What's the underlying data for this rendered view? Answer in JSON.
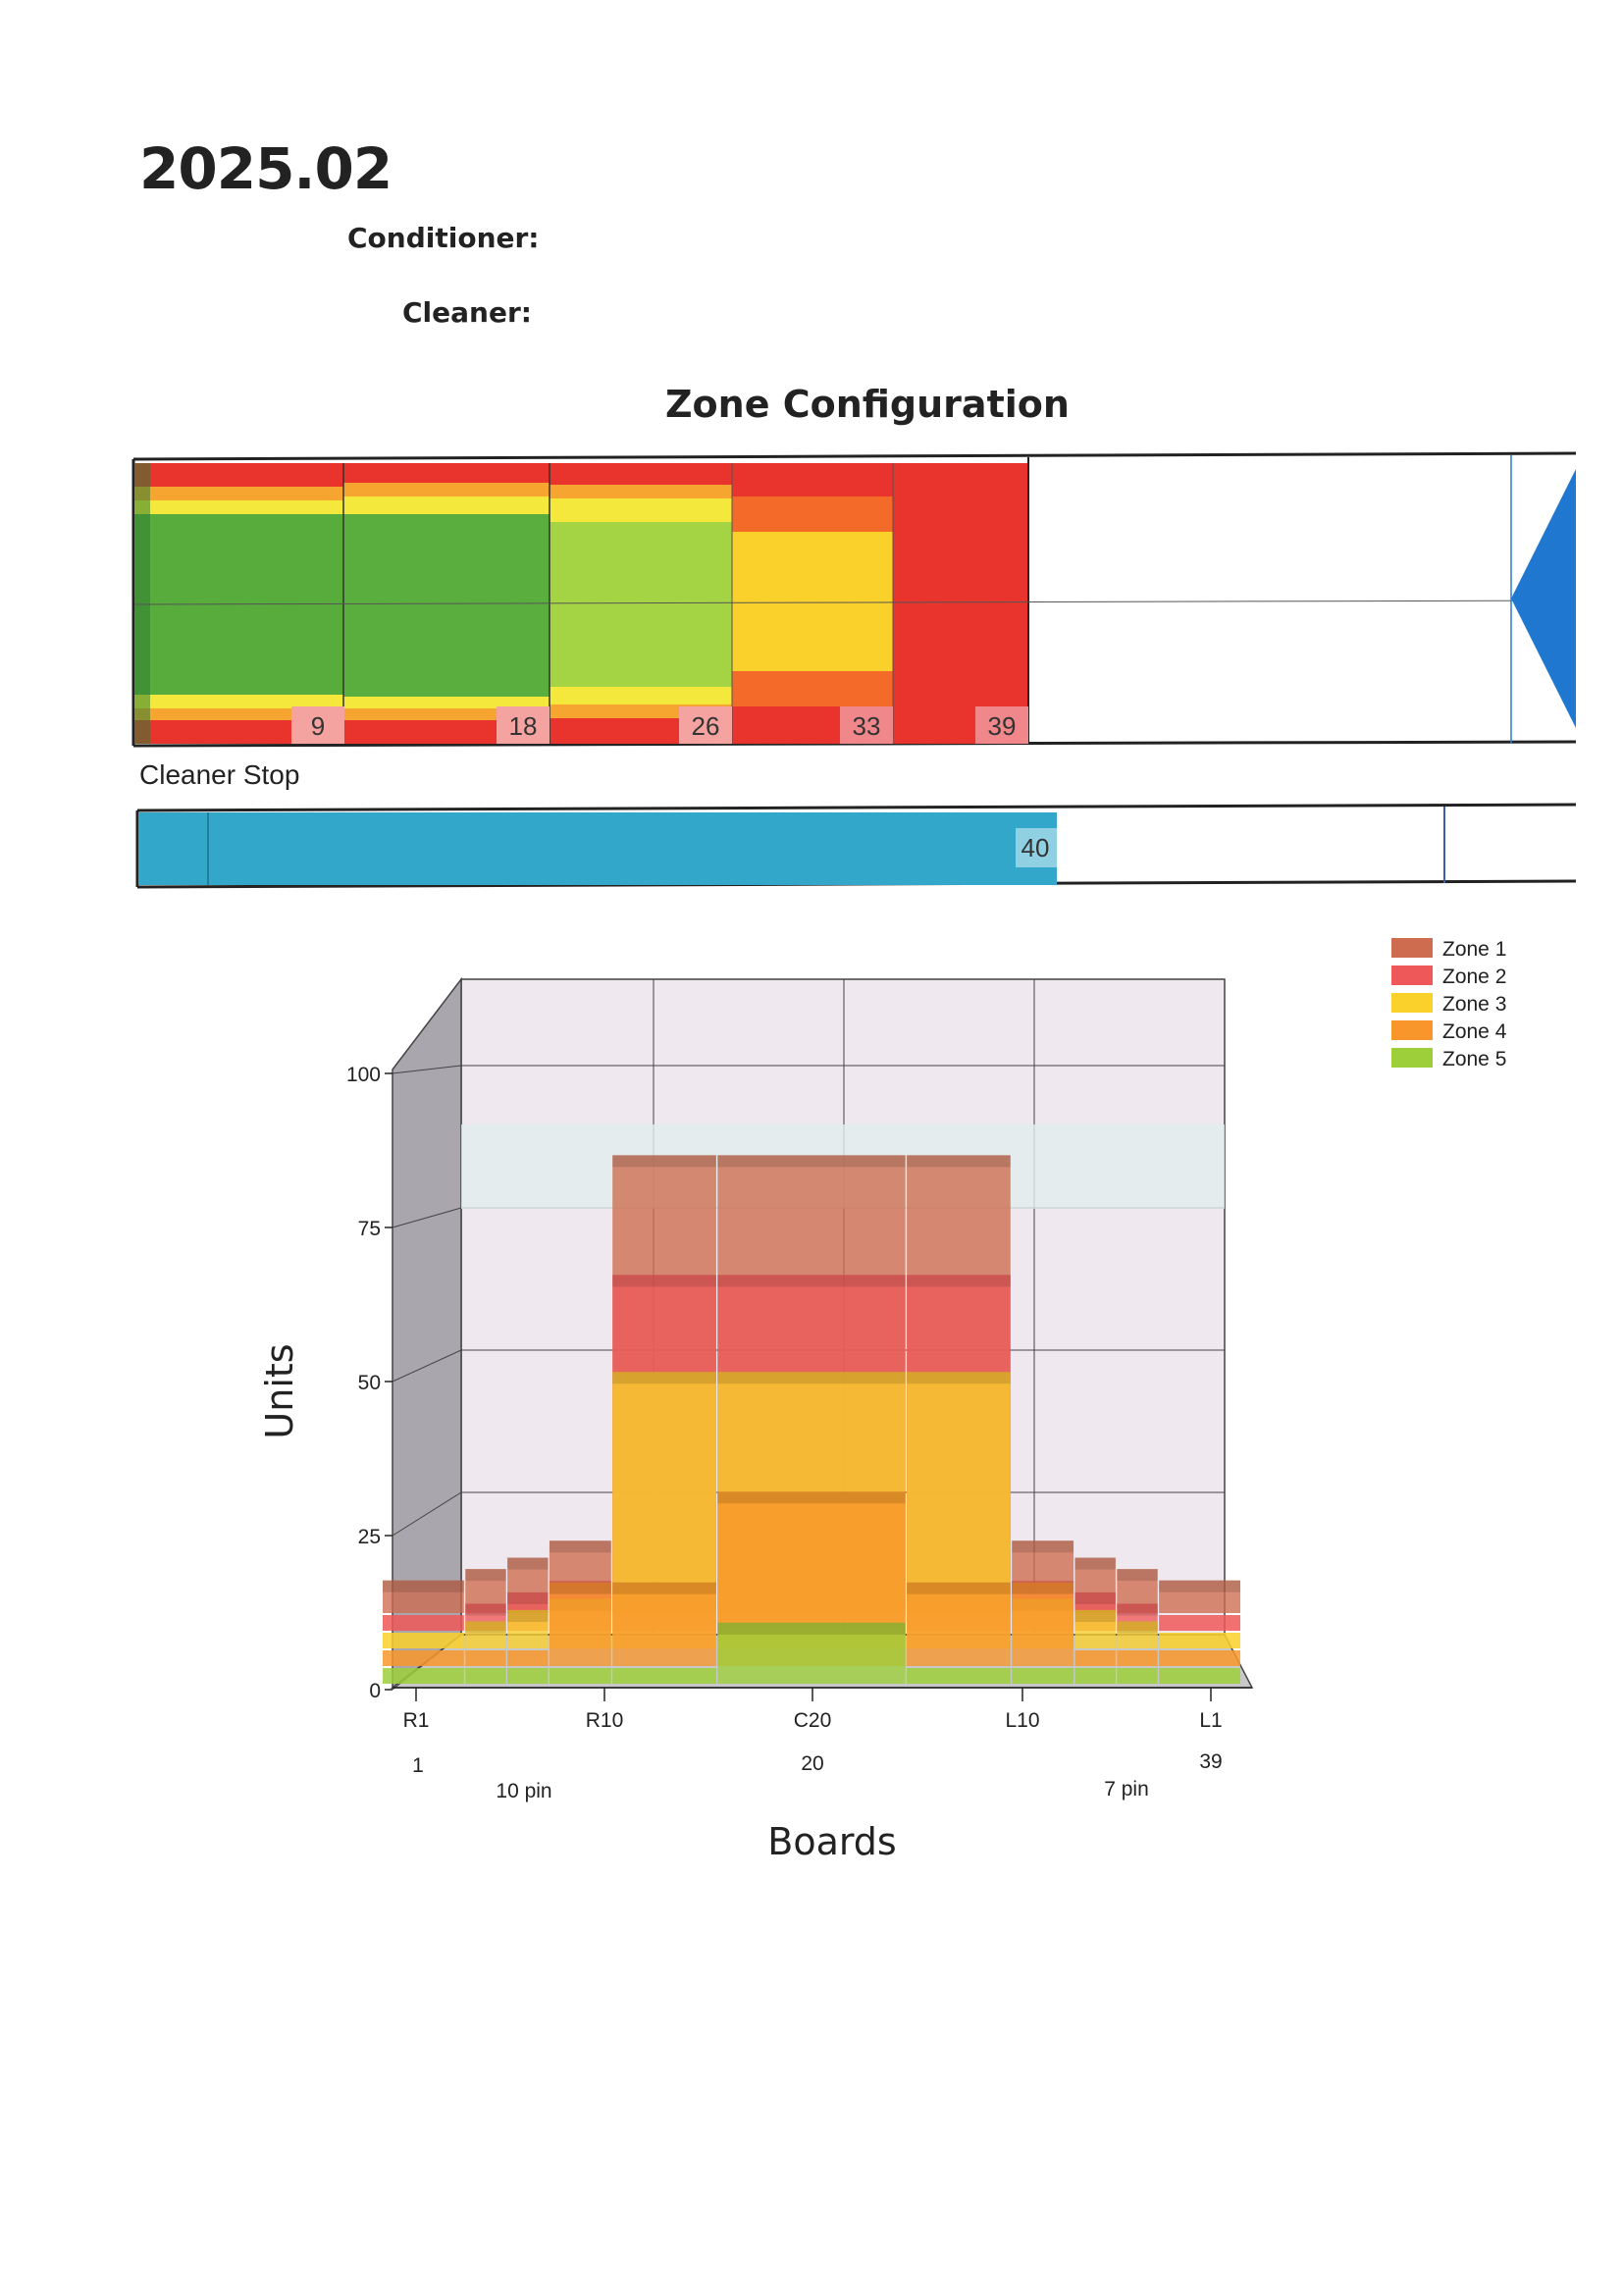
{
  "header": {
    "title": "2025.02",
    "conditioner_label": "Conditioner:",
    "cleaner_label": "Cleaner:",
    "section_title": "Zone Configuration",
    "cleaner_stop_label": "Cleaner Stop"
  },
  "lane_bar": {
    "board_markers": [
      "9",
      "18",
      "26",
      "33",
      "39"
    ],
    "stop_marker": "40"
  },
  "chart_data": {
    "type": "area",
    "title": "",
    "xlabel": "Boards",
    "ylabel": "Units",
    "ylim": [
      0,
      100
    ],
    "y_ticks": [
      "0",
      "25",
      "50",
      "75",
      "100"
    ],
    "x_ticks": [
      "R1",
      "R10",
      "C20",
      "L10",
      "L1"
    ],
    "x_board_numbers": [
      "1",
      "20",
      "39"
    ],
    "x_pin_labels": [
      "10 pin",
      "7 pin"
    ],
    "legend_position": "top-right",
    "x": [
      "1-3",
      "4-5",
      "6-7",
      "8-10",
      "11-15",
      "16-24",
      "25-29",
      "30-32",
      "33-34",
      "35-36",
      "37-39"
    ],
    "series": [
      {
        "name": "Zone 1",
        "color": "#cd6c4e",
        "values": [
          3,
          5,
          7,
          10,
          78,
          78,
          78,
          10,
          7,
          5,
          3
        ]
      },
      {
        "name": "Zone 2",
        "color": "#ee5858",
        "values": [
          0,
          2,
          4,
          6,
          60,
          60,
          60,
          6,
          4,
          2,
          0
        ]
      },
      {
        "name": "Zone 3",
        "color": "#fad12a",
        "values": [
          0,
          2,
          4,
          6,
          46,
          46,
          46,
          6,
          4,
          2,
          0
        ]
      },
      {
        "name": "Zone 4",
        "color": "#f9962b",
        "values": [
          0,
          0,
          0,
          12,
          12,
          28,
          12,
          12,
          0,
          0,
          0
        ]
      },
      {
        "name": "Zone 5",
        "color": "#9ccf3a",
        "values": [
          0,
          0,
          0,
          0,
          0,
          8,
          0,
          0,
          0,
          0,
          0
        ]
      }
    ]
  }
}
